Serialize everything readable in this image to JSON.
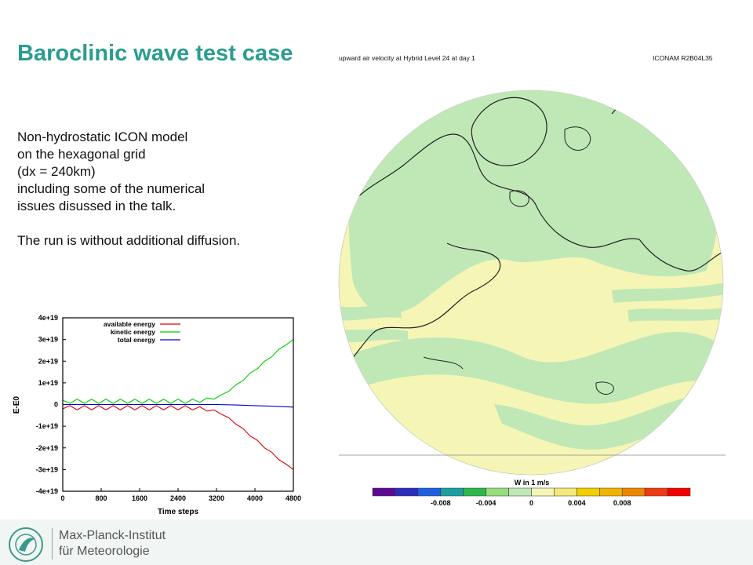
{
  "slide": {
    "title": "Baroclinic wave test case",
    "description": [
      "Non-hydrostatic ICON model",
      "on the hexagonal grid",
      "(dx = 240km)",
      "including some of the numerical",
      "issues disussed in the talk."
    ],
    "note": "The run is without additional diffusion."
  },
  "map": {
    "title": "upward air velocity  at Hybrid Level 24 at day 1",
    "run_label": "ICONAM R2B04L35",
    "colorbar_title": "W in 1 m/s",
    "colorbar_ticks": [
      "-0.008",
      "-0.004",
      "0",
      "0.004",
      "0.008"
    ],
    "colorbar_colors": [
      "#5b0a91",
      "#2d2dbb",
      "#1d5fe0",
      "#1a9f9f",
      "#2db84a",
      "#96df7c",
      "#bfe8b6",
      "#f5f5b6",
      "#f3e878",
      "#f2cf00",
      "#f0b400",
      "#ee8700",
      "#ef3a14",
      "#f20000"
    ],
    "colors": {
      "ocean_fill": "#f5f5b6",
      "green_fill": "#bfe8b6",
      "coastline": "#222222"
    }
  },
  "institute": {
    "line1": "Max-Planck-Institut",
    "line2": "für Meteorologie"
  },
  "chart_data": {
    "type": "line",
    "xlabel": "Time steps",
    "ylabel": "E-E0",
    "xlim": [
      0,
      4800
    ],
    "ylim": [
      -4e+19,
      4e+19
    ],
    "x_ticks": [
      "0",
      "800",
      "1600",
      "2400",
      "3200",
      "4000",
      "4800"
    ],
    "y_ticks": [
      "4e+19",
      "3e+19",
      "2e+19",
      "1e+19",
      "0",
      "-1e+19",
      "-2e+19",
      "-3e+19",
      "-4e+19"
    ],
    "legend_position": "top-right",
    "series": [
      {
        "name": "available energy",
        "color": "#e00000",
        "x": [
          0,
          150,
          300,
          450,
          600,
          750,
          900,
          1050,
          1200,
          1350,
          1500,
          1650,
          1800,
          1950,
          2100,
          2250,
          2400,
          2550,
          2700,
          2850,
          3000,
          3150,
          3300,
          3450,
          3600,
          3750,
          3900,
          4050,
          4200,
          4350,
          4500,
          4650,
          4800
        ],
        "values": [
          -2e+18,
          -5e+17,
          -2.5e+18,
          -5e+17,
          -2.5e+18,
          -5e+17,
          -2.5e+18,
          -5e+17,
          -2.5e+18,
          -5e+17,
          -2.5e+18,
          -5e+17,
          -2.5e+18,
          -5e+17,
          -2.5e+18,
          -5e+17,
          -2.5e+18,
          -5e+17,
          -2.5e+18,
          -1e+18,
          -3e+18,
          -2.5e+18,
          -4.5e+18,
          -6e+18,
          -9e+18,
          -1.1e+19,
          -1.45e+19,
          -1.65e+19,
          -2e+19,
          -2.2e+19,
          -2.55e+19,
          -2.75e+19,
          -3e+19
        ]
      },
      {
        "name": "kinetic energy",
        "color": "#00cc00",
        "x": [
          0,
          150,
          300,
          450,
          600,
          750,
          900,
          1050,
          1200,
          1350,
          1500,
          1650,
          1800,
          1950,
          2100,
          2250,
          2400,
          2550,
          2700,
          2850,
          3000,
          3150,
          3300,
          3450,
          3600,
          3750,
          3900,
          4050,
          4200,
          4350,
          4500,
          4650,
          4800
        ],
        "values": [
          2e+18,
          5e+17,
          2.5e+18,
          5e+17,
          2.5e+18,
          5e+17,
          2.5e+18,
          5e+17,
          2.5e+18,
          5e+17,
          2.5e+18,
          5e+17,
          2.5e+18,
          5e+17,
          2.5e+18,
          5e+17,
          2.5e+18,
          5e+17,
          2.5e+18,
          1e+18,
          3e+18,
          2.5e+18,
          4.5e+18,
          6e+18,
          9e+18,
          1.1e+19,
          1.45e+19,
          1.65e+19,
          2e+19,
          2.2e+19,
          2.55e+19,
          2.75e+19,
          3e+19
        ]
      },
      {
        "name": "total energy",
        "color": "#0000dd",
        "x": [
          0,
          800,
          1600,
          2400,
          3200,
          3600,
          4000,
          4400,
          4800
        ],
        "values": [
          0,
          0,
          0,
          0,
          0,
          -2e+17,
          -5e+17,
          -8e+17,
          -1.2e+18
        ]
      }
    ]
  }
}
